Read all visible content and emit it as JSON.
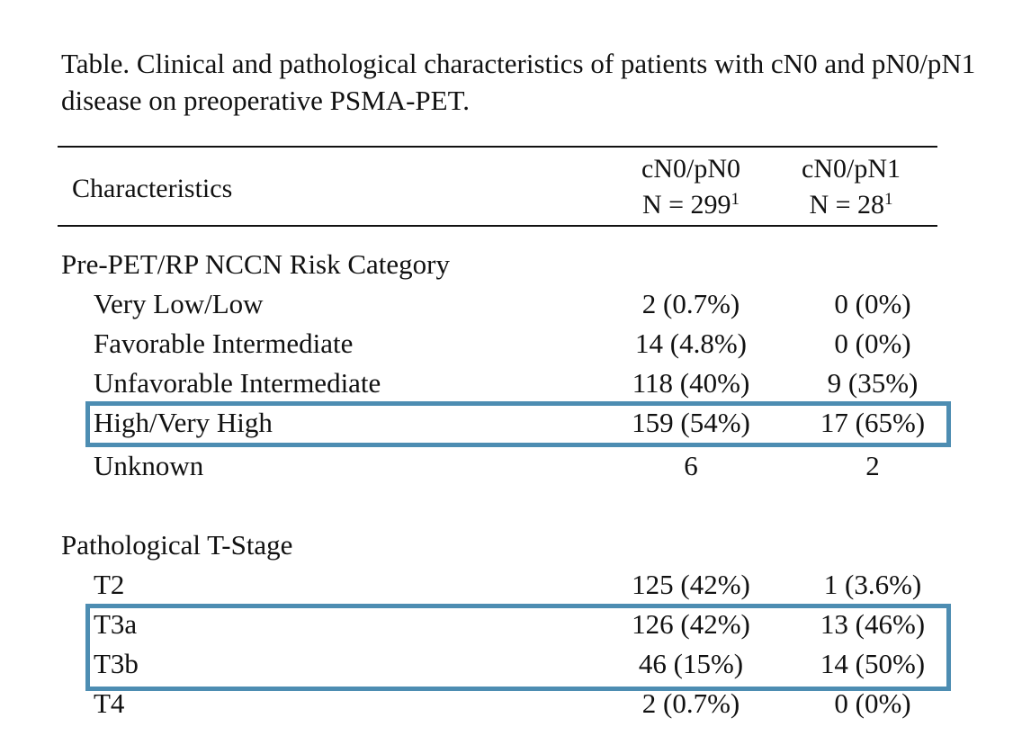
{
  "caption": "Table. Clinical and pathological characteristics of patients with cN0 and pN0/pN1 disease on preoperative PSMA-PET.",
  "header": {
    "label": "Characteristics",
    "col1_name": "cN0/pN0",
    "col1_n": "N = 299",
    "col1_sup": "1",
    "col2_name": "cN0/pN1",
    "col2_n": "N = 28",
    "col2_sup": "1"
  },
  "sections": [
    {
      "title": "Pre-PET/RP NCCN Risk Category",
      "rows": [
        {
          "label": "Very Low/Low",
          "v1": "2 (0.7%)",
          "v2": "0 (0%)"
        },
        {
          "label": "Favorable Intermediate",
          "v1": "14 (4.8%)",
          "v2": "0 (0%)"
        },
        {
          "label": "Unfavorable Intermediate",
          "v1": "118 (40%)",
          "v2": "9 (35%)"
        },
        {
          "label": "High/Very High",
          "v1": "159 (54%)",
          "v2": "17 (65%)"
        },
        {
          "label": "Unknown",
          "v1": "6",
          "v2": "2"
        }
      ]
    },
    {
      "title": "Pathological T-Stage",
      "rows": [
        {
          "label": "T2",
          "v1": "125 (42%)",
          "v2": "1 (3.6%)"
        },
        {
          "label": "T3a",
          "v1": "126 (42%)",
          "v2": "13 (46%)"
        },
        {
          "label": "T3b",
          "v1": "46 (15%)",
          "v2": "14 (50%)"
        },
        {
          "label": "T4",
          "v1": "2 (0.7%)",
          "v2": "0 (0%)"
        }
      ]
    }
  ],
  "colors": {
    "highlight_border": "#4d8db2",
    "text": "#111111",
    "background": "#ffffff"
  }
}
